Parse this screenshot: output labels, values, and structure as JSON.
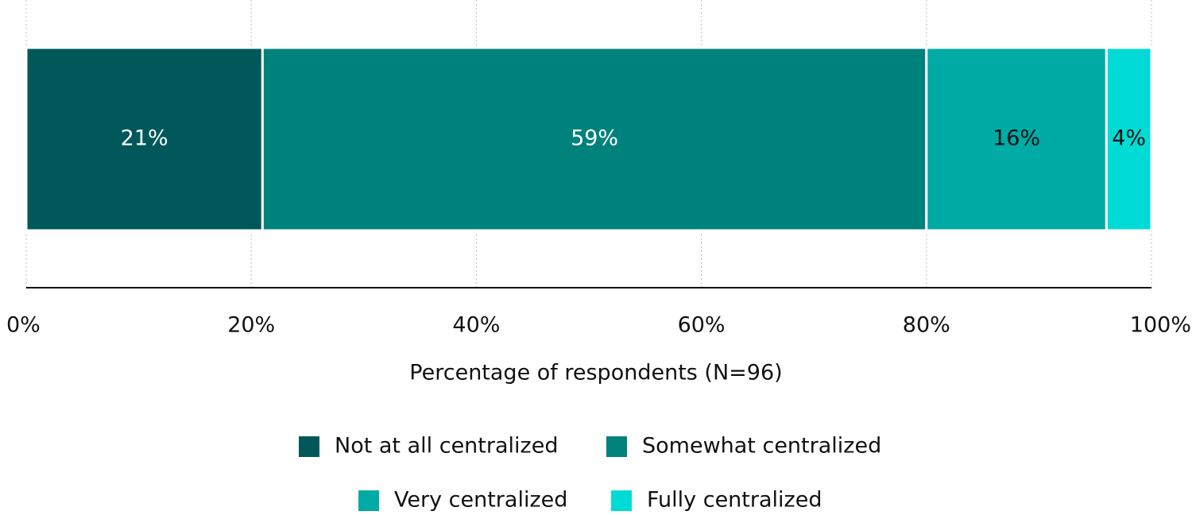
{
  "chart_data": {
    "type": "stacked-bar-horizontal",
    "x_label": "Percentage of respondents (N=96)",
    "xlim": [
      0,
      100
    ],
    "xticks": [
      {
        "value": 0,
        "label": "0%"
      },
      {
        "value": 20,
        "label": "20%"
      },
      {
        "value": 40,
        "label": "40%"
      },
      {
        "value": 60,
        "label": "60%"
      },
      {
        "value": 80,
        "label": "80%"
      },
      {
        "value": 100,
        "label": "100%"
      }
    ],
    "grid": true,
    "series": [
      {
        "name": "Not at all centralized",
        "color": "#00585a",
        "values": [
          21
        ],
        "value_labels": [
          "21%"
        ]
      },
      {
        "name": "Somewhat centralized",
        "color": "#00827c",
        "values": [
          59
        ],
        "value_labels": [
          "59%"
        ]
      },
      {
        "name": "Very centralized",
        "color": "#00aaa5",
        "values": [
          16
        ],
        "value_labels": [
          "16%"
        ]
      },
      {
        "name": "Fully centralized",
        "color": "#00dcd5",
        "values": [
          4
        ],
        "value_labels": [
          "4%"
        ]
      }
    ]
  }
}
